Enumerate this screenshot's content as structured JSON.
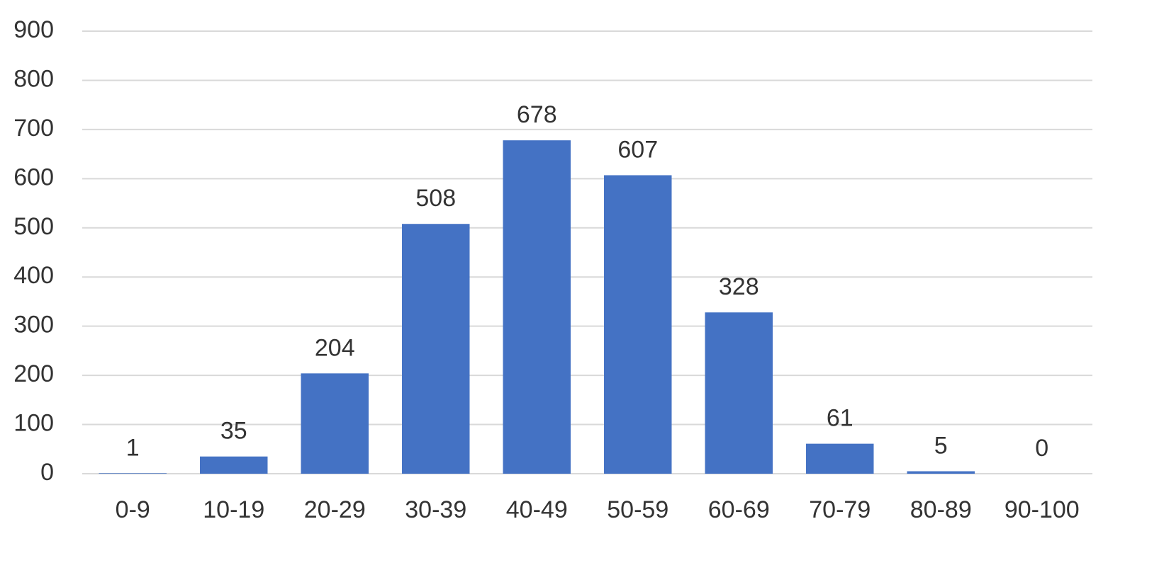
{
  "chart_data": {
    "type": "bar",
    "categories": [
      "0-9",
      "10-19",
      "20-29",
      "30-39",
      "40-49",
      "50-59",
      "60-69",
      "70-79",
      "80-89",
      "90-100"
    ],
    "values": [
      1,
      35,
      204,
      508,
      678,
      607,
      328,
      61,
      5,
      0
    ],
    "color": "#4472c4",
    "ylim": [
      0,
      900
    ],
    "yticks": [
      0,
      100,
      200,
      300,
      400,
      500,
      600,
      700,
      800,
      900
    ],
    "grid": true
  }
}
